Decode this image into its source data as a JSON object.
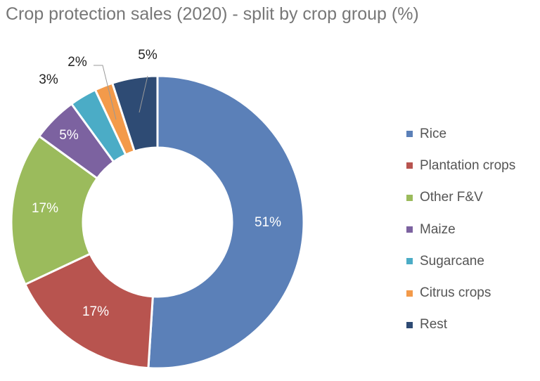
{
  "chart_data": {
    "type": "pie",
    "donut": true,
    "title": "Crop protection sales (2020) - split by crop group (%)",
    "categories": [
      "Rice",
      "Plantation crops",
      "Other F&V",
      "Maize",
      "Sugarcane",
      "Citrus crops",
      "Rest"
    ],
    "values": [
      51,
      17,
      17,
      5,
      3,
      2,
      5
    ],
    "data_labels": [
      "51%",
      "17%",
      "17%",
      "5%",
      "3%",
      "2%",
      "5%"
    ],
    "colors": [
      "#5b80b8",
      "#b8544f",
      "#9bbb5c",
      "#7c62a0",
      "#4bacc6",
      "#f39a4a",
      "#2e4b74"
    ],
    "legend_position": "right"
  }
}
